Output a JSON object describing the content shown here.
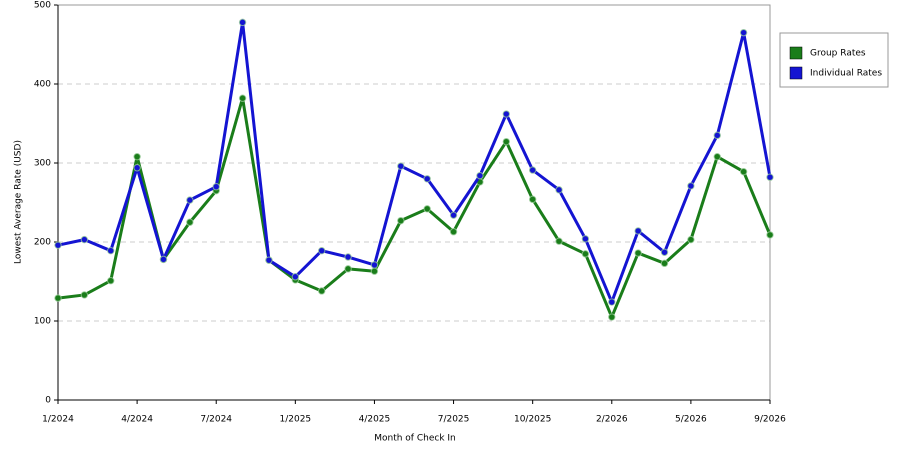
{
  "chart_data": {
    "type": "line",
    "xlabel": "Month of Check In",
    "ylabel": "Lowest Average Rate (USD)",
    "categories": [
      "1/2024",
      null,
      null,
      "4/2024",
      null,
      null,
      "7/2024",
      null,
      null,
      "1/2025",
      null,
      null,
      "4/2025",
      null,
      null,
      "7/2025",
      null,
      null,
      "10/2025",
      null,
      null,
      "2/2026",
      null,
      null,
      "5/2026",
      null,
      null,
      "9/2026"
    ],
    "series": [
      {
        "name": "Group Rates",
        "color": "#1a7d1a",
        "values": [
          129,
          133,
          151,
          308,
          178,
          225,
          265,
          382,
          177,
          152,
          138,
          166,
          163,
          227,
          242,
          213,
          276,
          327,
          254,
          201,
          185,
          105,
          186,
          173,
          203,
          308,
          289,
          209
        ]
      },
      {
        "name": "Individual Rates",
        "color": "#1414d2",
        "values": [
          196,
          203,
          189,
          294,
          178,
          253,
          270,
          478,
          177,
          156,
          189,
          181,
          171,
          296,
          280,
          234,
          284,
          362,
          291,
          266,
          204,
          124,
          214,
          187,
          271,
          335,
          465,
          282
        ]
      }
    ],
    "ylim": [
      0,
      500
    ],
    "yticks": [
      0,
      100,
      200,
      300,
      400,
      500
    ],
    "grid": true,
    "legend": "right"
  }
}
